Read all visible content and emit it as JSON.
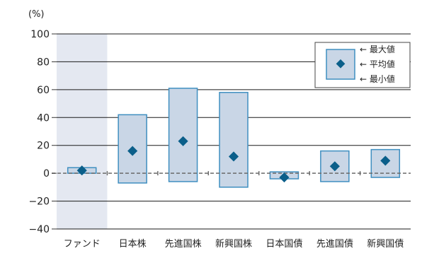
{
  "chart_data": {
    "type": "range-bar",
    "unit_label": "(%)",
    "ylim": [
      -40,
      100
    ],
    "yticks": [
      -40,
      -20,
      0,
      20,
      40,
      60,
      80,
      100
    ],
    "ytick_labels": [
      "−40",
      "−20",
      "0",
      "20",
      "40",
      "60",
      "80",
      "100"
    ],
    "categories": [
      "ファンド",
      "日本株",
      "先進国株",
      "新興国株",
      "日本国債",
      "先進国債",
      "新興国債"
    ],
    "series": [
      {
        "name": "最大値",
        "values": [
          4,
          42,
          61,
          58,
          1,
          16,
          17
        ]
      },
      {
        "name": "平均値",
        "values": [
          2,
          16,
          23,
          12,
          -3,
          5,
          9
        ]
      },
      {
        "name": "最小値",
        "values": [
          0,
          -7,
          -6,
          -10,
          -4,
          -6,
          -3
        ]
      }
    ],
    "highlight_category": "ファンド",
    "legend": {
      "position": "top-right",
      "items": [
        "← 最大値",
        "← 平均値",
        "← 最小値"
      ]
    },
    "grid": true,
    "colors": {
      "bar_fill": "#c9d6e6",
      "bar_stroke": "#3f8fc0",
      "marker": "#0b5f8a",
      "highlight_band": "#e4e8f1",
      "grid": "#1a1a1a",
      "zero_line": "#6a6a6a"
    }
  }
}
